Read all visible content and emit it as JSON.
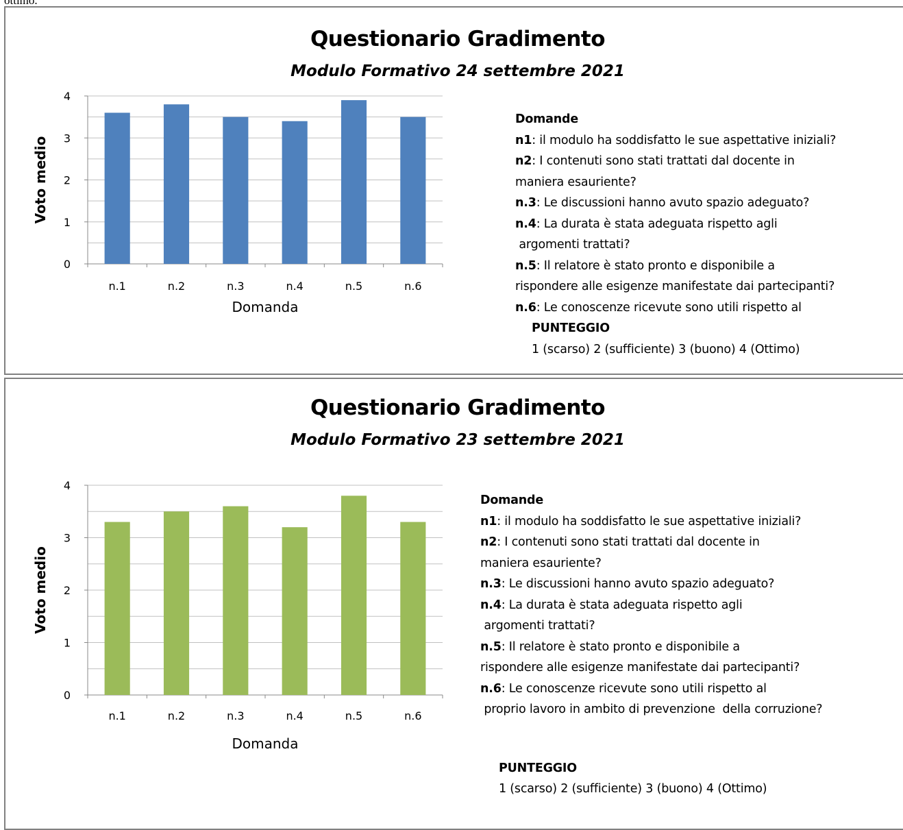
{
  "top_fragment": "ottimo.",
  "chart_data": [
    {
      "type": "bar",
      "title": "Questionario Gradimento",
      "subtitle": "Modulo Formativo 24 settembre 2021",
      "categories": [
        "n.1",
        "n.2",
        "n.3",
        "n.4",
        "n.5",
        "n.6"
      ],
      "values": [
        3.6,
        3.8,
        3.5,
        3.4,
        3.9,
        3.5
      ],
      "xlabel": "Domanda",
      "ylabel": "Voto medio",
      "ylim": [
        0,
        4
      ],
      "yticks": [
        0,
        1,
        2,
        3,
        4
      ],
      "grid": true,
      "color": "#4f81bd"
    },
    {
      "type": "bar",
      "title": "Questionario Gradimento",
      "subtitle": "Modulo Formativo 23 settembre 2021",
      "categories": [
        "n.1",
        "n.2",
        "n.3",
        "n.4",
        "n.5",
        "n.6"
      ],
      "values": [
        3.3,
        3.5,
        3.6,
        3.2,
        3.8,
        3.3
      ],
      "xlabel": "Domanda",
      "ylabel": "Voto medio",
      "ylim": [
        0,
        4
      ],
      "yticks": [
        0,
        1,
        2,
        3,
        4
      ],
      "grid": true,
      "color": "#9bbb59"
    }
  ],
  "notes1": {
    "heading": "Domande",
    "q1_key": "n1",
    "q1_text": ": il modulo ha soddisfatto le sue aspettative iniziali?",
    "q2_key": "n2",
    "q2_text": ": I contenuti sono stati trattati dal docente in",
    "q2_cont": "maniera esauriente?",
    "q3_key": "n.3",
    "q3_text": ": Le discussioni hanno avuto spazio adeguato?",
    "q4_key": "n.4",
    "q4_text": ": La durata  è stata adeguata rispetto agli",
    "q4_cont": " argomenti trattati?",
    "q5_key": "n.5",
    "q5_text": ":  Il relatore è stato pronto e disponibile a",
    "q5_cont": "rispondere alle esigenze manifestate dai partecipanti?",
    "q6_key": "n.6",
    "q6_text": ":  Le conoscenze ricevute sono utili rispetto al",
    "score_heading": "PUNTEGGIO",
    "score_scale": "1 (scarso)  2 (sufficiente)  3 (buono)  4 (Ottimo)"
  },
  "notes2": {
    "heading": "Domande",
    "q1_key": "n1",
    "q1_text": ": il modulo ha soddisfatto le sue aspettative iniziali?",
    "q2_key": "n2",
    "q2_text": ": I contenuti sono stati trattati dal docente in",
    "q2_cont": "maniera esauriente?",
    "q3_key": "n.3",
    "q3_text": ": Le discussioni hanno avuto spazio adeguato?",
    "q4_key": "n.4",
    "q4_text": ": La durata  è stata adeguata rispetto agli",
    "q4_cont": " argomenti trattati?",
    "q5_key": "n.5",
    "q5_text": ":  Il relatore è stato pronto e disponibile a",
    "q5_cont": "rispondere alle esigenze manifestate dai partecipanti?",
    "q6_key": "n.6",
    "q6_text": ":  Le conoscenze ricevute sono utili rispetto al",
    "q6_cont": " proprio lavoro in ambito di prevenzione  della corruzione?",
    "score_heading": "PUNTEGGIO",
    "score_scale": "1 (scarso)  2 (sufficiente)  3 (buono)  4 (Ottimo)"
  }
}
